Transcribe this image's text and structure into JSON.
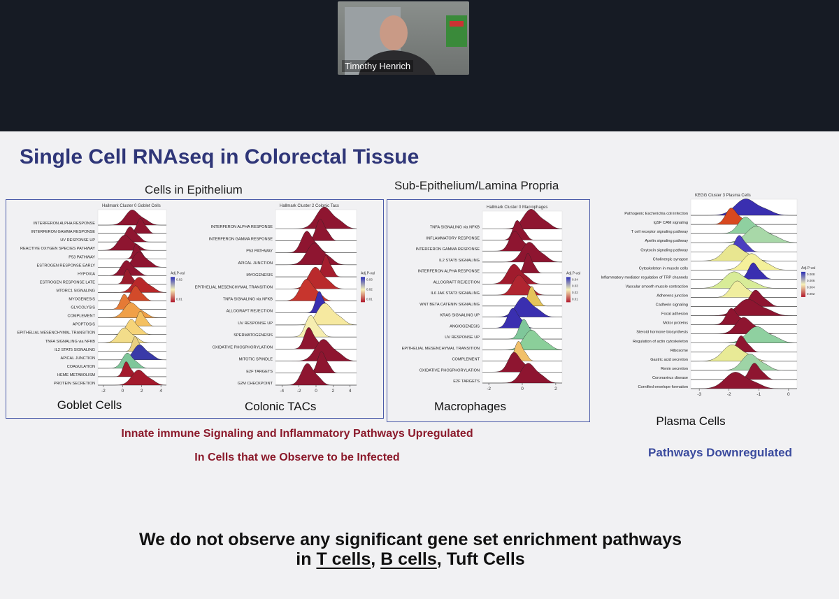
{
  "video": {
    "participant": "Timothy Henrich"
  },
  "slide": {
    "title": "Single Cell RNAseq in Colorectal Tissue",
    "groups": [
      "Cells in Epithelium",
      "Sub-Epithelium/Lamina Propria"
    ],
    "panels": [
      {
        "plot_title": "Hallmark Cluster 0 Goblet Cells",
        "label": "Goblet Cells",
        "pathways": [
          "INTERFERON ALPHA RESPONSE",
          "INTERFERON GAMMA RESPONSE",
          "UV RESPONSE UP",
          "REACTIVE OXYGEN SPECIES PATHWAY",
          "P53 PATHWAY",
          "ESTROGEN RESPONSE EARLY",
          "HYPOXIA",
          "ESTROGEN RESPONSE LATE",
          "MTORC1 SIGNALING",
          "MYOGENESIS",
          "GLYCOLYSIS",
          "COMPLEMENT",
          "APOPTOSIS",
          "EPITHELIAL MESENCHYMAL TRANSITION",
          "TNFA SIGNALING via NFKB",
          "IL2 STAT5 SIGNALING",
          "APICAL JUNCTION",
          "COAGULATION",
          "HEME METABOLISM",
          "PROTEIN SECRETION"
        ],
        "xticks": [
          -2,
          0,
          2,
          4
        ],
        "legend_title": "Adj.P-val",
        "legend_ticks": [
          0.02,
          0.01
        ]
      },
      {
        "plot_title": "Hallmark Cluster 2 Colonic Tacs",
        "label": "Colonic TACs",
        "pathways": [
          "INTERFERON ALPHA RESPONSE",
          "INTERFERON GAMMA RESPONSE",
          "P53 PATHWAY",
          "APICAL JUNCTION",
          "MYOGENESIS",
          "EPITHELIAL MESENCHYMAL TRANSITION",
          "TNFA SIGNALING via NFKB",
          "ALLOGRAFT REJECTION",
          "UV RESPONSE UP",
          "SPERMATOGENESIS",
          "OXIDATIVE PHOSPHORYLATION",
          "MITOTIC SPINDLE",
          "E2F TARGETS",
          "G2M CHECKPOINT"
        ],
        "xticks": [
          -4,
          -2,
          0,
          2,
          4
        ],
        "legend_title": "Adj.P-val",
        "legend_ticks": [
          0.03,
          0.02,
          0.01
        ]
      },
      {
        "plot_title": "Hallmark Cluster 0 Macrophages",
        "label": "Macrophages",
        "pathways": [
          "TNFA SIGNALING via NFKB",
          "INFLAMMATORY RESPONSE",
          "INTERFERON GAMMA RESPONSE",
          "IL2 STAT5 SIGNALING",
          "INTERFERON ALPHA RESPONSE",
          "ALLOGRAFT REJECTION",
          "IL6 JAK STAT3 SIGNALING",
          "WNT BETA CATENIN SIGNALING",
          "KRAS SIGNALING UP",
          "ANGIOGENESIS",
          "UV RESPONSE UP",
          "EPITHELIAL MESENCHYMAL TRANSITION",
          "COMPLEMENT",
          "OXIDATIVE PHOSPHORYLATION",
          "E2F TARGETS"
        ],
        "xticks": [
          -2,
          0,
          2
        ],
        "legend_title": "Adj.P-val",
        "legend_ticks": [
          0.04,
          0.03,
          0.02,
          0.01
        ]
      },
      {
        "plot_title": "KEGG Cluster 3 Plasma Cells",
        "label": "Plasma Cells",
        "pathways": [
          "Pathogenic Escherichia coli infection",
          "IgSF CAM signaling",
          "T cell receptor signaling pathway",
          "Apelin signaling pathway",
          "Oxytocin signaling pathway",
          "Cholinergic synapse",
          "Cytoskeleton in muscle cells",
          "Inflammatory mediator regulation of TRP channels",
          "Vascular smooth muscle contraction",
          "Adherens junction",
          "Cadherin signaling",
          "Focal adhesion",
          "Motor proteins",
          "Steroid hormone biosynthesis",
          "Regulation of actin cytoskeleton",
          "Ribosome",
          "Gastric acid secretion",
          "Renin secretion",
          "Coronavirus disease",
          "Cornified envelope formation"
        ],
        "xticks": [
          -3,
          -2,
          -1,
          0
        ],
        "legend_title": "Adj.P-val",
        "legend_ticks": [
          0.008,
          0.006,
          0.004,
          0.002
        ]
      }
    ],
    "caption_lines": [
      "Innate immune Signaling and Inflammatory Pathways Upregulated",
      "In Cells that we Observe to be Infected"
    ],
    "side_caption": "Pathways Downregulated",
    "bottom": {
      "line1": "We do not observe any significant gene set enrichment pathways",
      "line2": [
        "in",
        "T cells",
        ",",
        "B cells",
        ", Tuft Cells"
      ]
    }
  }
}
